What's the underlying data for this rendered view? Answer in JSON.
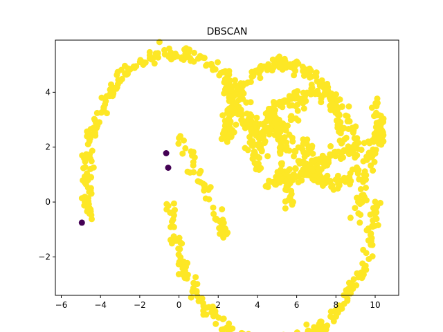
{
  "chart_data": {
    "type": "scatter",
    "title": "DBSCAN",
    "xlabel": "",
    "ylabel": "",
    "xlim": [
      -6.3,
      11.2
    ],
    "ylim": [
      -3.4,
      5.9
    ],
    "xticks": [
      -6,
      -4,
      -2,
      0,
      2,
      4,
      6,
      8,
      10
    ],
    "xtick_labels": [
      "−6",
      "−4",
      "−2",
      "0",
      "2",
      "4",
      "6",
      "8",
      "10"
    ],
    "yticks": [
      -2,
      0,
      2,
      4
    ],
    "ytick_labels": [
      "−2",
      "0",
      "2",
      "4"
    ],
    "grid": false,
    "colors": {
      "cluster": "#fde725",
      "noise": "#440154"
    },
    "series": [
      {
        "label": "noise",
        "color": "#440154",
        "points": [
          [
            -4.95,
            -0.75
          ],
          [
            -0.65,
            1.78
          ],
          [
            -0.55,
            1.25
          ]
        ]
      },
      {
        "label": "cluster",
        "color": "#fde725",
        "shapes": [
          {
            "kind": "arc",
            "cx": -0.2,
            "cy": 0.9,
            "r": 4.5,
            "a0": 10,
            "a1": 200,
            "n": 210
          },
          {
            "kind": "arc",
            "cx": 4.8,
            "cy": 0.1,
            "r": 5.2,
            "a0": 183,
            "a1": 360,
            "n": 220
          },
          {
            "kind": "arc",
            "cx": 5.3,
            "cy": 2.1,
            "r": 2.95,
            "a0": 0,
            "a1": 175,
            "n": 170
          },
          {
            "kind": "arc",
            "cx": 7.9,
            "cy": 3.0,
            "r": 2.3,
            "a0": 195,
            "a1": 365,
            "n": 130
          },
          {
            "kind": "arc",
            "cx": 4.5,
            "cy": 4.7,
            "r": 2.1,
            "a0": 185,
            "a1": 340,
            "n": 100
          },
          {
            "kind": "arc",
            "cx": 6.6,
            "cy": 1.4,
            "r": 2.6,
            "a0": 20,
            "a1": 175,
            "n": 100
          },
          {
            "kind": "line",
            "x0": 0.0,
            "y0": 2.6,
            "x1": 2.4,
            "y1": -1.3,
            "n": 55
          },
          {
            "kind": "line",
            "x0": 7.0,
            "y0": 1.5,
            "x1": 9.6,
            "y1": 2.1,
            "n": 50
          },
          {
            "kind": "line",
            "x0": 10.0,
            "y0": 3.7,
            "x1": 10.3,
            "y1": 2.3,
            "n": 20
          },
          {
            "kind": "line",
            "x0": 4.6,
            "y0": 3.3,
            "x1": 5.4,
            "y1": 1.8,
            "n": 35
          },
          {
            "kind": "line",
            "x0": 4.5,
            "y0": 0.6,
            "x1": 7.6,
            "y1": 1.4,
            "n": 70
          },
          {
            "kind": "line",
            "x0": 3.6,
            "y0": 2.6,
            "x1": 4.0,
            "y1": 1.2,
            "n": 25
          },
          {
            "kind": "line",
            "x0": 4.9,
            "y0": 3.0,
            "x1": 5.6,
            "y1": -0.2,
            "n": 40
          },
          {
            "kind": "line",
            "x0": 6.4,
            "y0": 2.3,
            "x1": 7.0,
            "y1": 0.9,
            "n": 30
          },
          {
            "kind": "line",
            "x0": 9.1,
            "y0": -0.8,
            "x1": 9.8,
            "y1": 1.8,
            "n": 25
          },
          {
            "kind": "line",
            "x0": 2.3,
            "y0": 2.2,
            "x1": 2.8,
            "y1": 2.7,
            "n": 12
          }
        ]
      }
    ]
  }
}
